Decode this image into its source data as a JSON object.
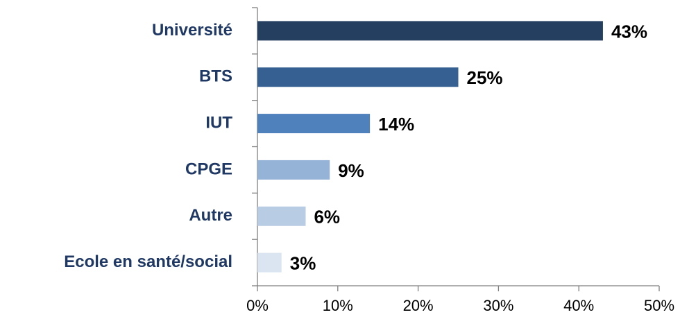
{
  "chart_data": {
    "type": "bar",
    "orientation": "horizontal",
    "categories": [
      "Université",
      "BTS",
      "IUT",
      "CPGE",
      "Autre",
      "Ecole en santé/social"
    ],
    "values": [
      43,
      25,
      14,
      9,
      6,
      3
    ],
    "value_labels": [
      "43%",
      "25%",
      "14%",
      "9%",
      "6%",
      "3%"
    ],
    "colors": [
      "#243f60",
      "#366092",
      "#4f81bd",
      "#95b3d7",
      "#b8cce4",
      "#dbe5f1"
    ],
    "xlim": [
      0,
      50
    ],
    "xticks": [
      {
        "value": 0,
        "label": "0%"
      },
      {
        "value": 10,
        "label": "10%"
      },
      {
        "value": 20,
        "label": "20%"
      },
      {
        "value": 30,
        "label": "30%"
      },
      {
        "value": 40,
        "label": "40%"
      },
      {
        "value": 50,
        "label": "50%"
      }
    ],
    "grid": false
  }
}
